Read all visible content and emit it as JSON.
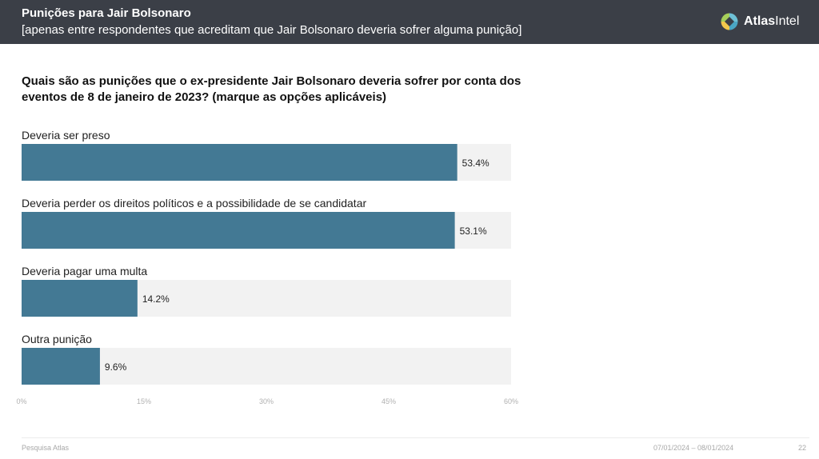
{
  "header": {
    "title": "Punições para Jair Bolsonaro",
    "subtitle": "[apenas entre respondentes que acreditam que Jair Bolsonaro deveria sofrer alguma punição]",
    "logo": {
      "text_bold": "Atlas",
      "text_regular": "Intel",
      "icon": "atlasintel-logo-icon"
    }
  },
  "question": "Quais são as punições que o ex-presidente Jair Bolsonaro deveria sofrer por conta dos eventos de 8 de janeiro de 2023? (marque as opções aplicáveis)",
  "chart_data": {
    "type": "bar",
    "orientation": "horizontal",
    "categories": [
      "Deveria ser preso",
      "Deveria perder os direitos políticos e a possibilidade de se candidatar",
      "Deveria pagar uma multa",
      "Outra punição"
    ],
    "values": [
      53.4,
      53.1,
      14.2,
      9.6
    ],
    "value_labels": [
      "53.4%",
      "53.1%",
      "14.2%",
      "9.6%"
    ],
    "xlim": [
      0,
      60
    ],
    "ticks": [
      "0%",
      "15%",
      "30%",
      "45%",
      "60%"
    ],
    "grid": false,
    "colors": {
      "bar": "#437994",
      "track": "#f2f2f2"
    }
  },
  "footer": {
    "source": "Pesquisa Atlas",
    "date_range": "07/01/2024 – 08/01/2024",
    "page": "22"
  }
}
